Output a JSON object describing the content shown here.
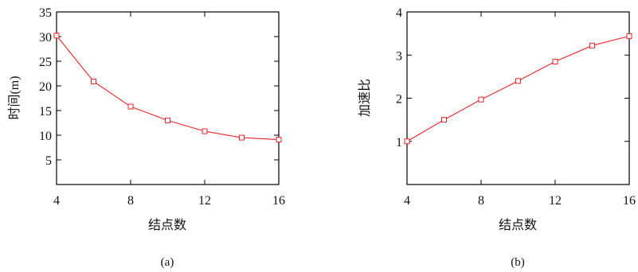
{
  "chart_data": [
    {
      "type": "line",
      "caption": "(a)",
      "xlabel": "结点数",
      "ylabel": "时间(m)",
      "x": [
        4,
        6,
        8,
        10,
        12,
        14,
        16
      ],
      "series": [
        {
          "values": [
            30.2,
            20.9,
            15.8,
            13.0,
            10.8,
            9.5,
            9.1
          ]
        }
      ],
      "xlim": [
        4,
        16
      ],
      "ylim": [
        0,
        35
      ],
      "xticks": [
        4,
        8,
        12,
        16
      ],
      "yticks": [
        5,
        10,
        15,
        20,
        25,
        30,
        35
      ],
      "marker": "square",
      "grid": false,
      "color": "#e8232a"
    },
    {
      "type": "line",
      "caption": "(b)",
      "xlabel": "结点数",
      "ylabel": "加速比",
      "x": [
        4,
        6,
        8,
        10,
        12,
        14,
        16
      ],
      "series": [
        {
          "values": [
            1.0,
            1.5,
            1.97,
            2.4,
            2.85,
            3.22,
            3.44
          ]
        }
      ],
      "xlim": [
        4,
        16
      ],
      "ylim": [
        0,
        4
      ],
      "xticks": [
        4,
        8,
        12,
        16
      ],
      "yticks": [
        1,
        2,
        3,
        4
      ],
      "marker": "square",
      "grid": false,
      "color": "#e8232a"
    }
  ]
}
